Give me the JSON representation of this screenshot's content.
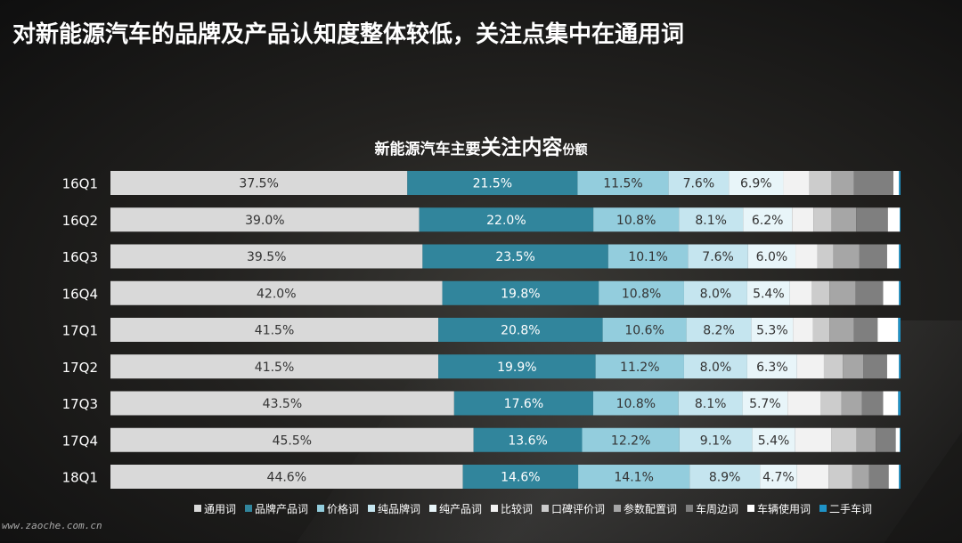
{
  "headline": "对新能源汽车的品牌及产品认知度整体较低，关注点集中在通用词",
  "chart_data": {
    "type": "bar",
    "orientation": "horizontal",
    "stacked": true,
    "percent_stacked": true,
    "title_parts": [
      "新能源汽车主要",
      "关注内容",
      "份额"
    ],
    "categories": [
      "16Q1",
      "16Q2",
      "16Q3",
      "16Q4",
      "17Q1",
      "17Q2",
      "17Q3",
      "17Q4",
      "18Q1"
    ],
    "series": [
      {
        "name": "通用词",
        "color": "#d9d9d9",
        "label_color": "#333333",
        "labeled": true,
        "values": [
          37.5,
          39.0,
          39.5,
          42.0,
          41.5,
          41.5,
          43.5,
          45.5,
          44.6
        ]
      },
      {
        "name": "品牌产品词",
        "color": "#31859c",
        "label_color": "#ffffff",
        "labeled": true,
        "values": [
          21.5,
          22.0,
          23.5,
          19.8,
          20.8,
          19.9,
          17.6,
          13.6,
          14.6
        ]
      },
      {
        "name": "价格词",
        "color": "#93cddd",
        "label_color": "#333333",
        "labeled": true,
        "values": [
          11.5,
          10.8,
          10.1,
          10.8,
          10.6,
          11.2,
          10.8,
          12.2,
          14.1
        ]
      },
      {
        "name": "纯品牌词",
        "color": "#c5e5ef",
        "label_color": "#333333",
        "labeled": true,
        "values": [
          7.6,
          8.1,
          7.6,
          8.0,
          8.2,
          8.0,
          8.1,
          9.1,
          8.9
        ]
      },
      {
        "name": "纯产品词",
        "color": "#e8f5f9",
        "label_color": "#333333",
        "labeled": true,
        "values": [
          6.9,
          6.2,
          6.0,
          5.4,
          5.3,
          6.3,
          5.7,
          5.4,
          4.7
        ]
      },
      {
        "name": "比较词",
        "color": "#f2f2f2",
        "label_color": "#333333",
        "labeled": false,
        "values": [
          3.3,
          2.7,
          2.8,
          2.8,
          2.5,
          3.4,
          4.2,
          4.5,
          4.0
        ]
      },
      {
        "name": "口碑评价词",
        "color": "#cccccc",
        "label_color": "#333333",
        "labeled": false,
        "values": [
          2.8,
          2.3,
          2.0,
          2.2,
          2.1,
          2.4,
          2.6,
          3.2,
          3.0
        ]
      },
      {
        "name": "参数配置词",
        "color": "#a6a6a6",
        "label_color": "#333333",
        "labeled": false,
        "values": [
          2.8,
          3.1,
          3.3,
          3.3,
          3.1,
          2.6,
          2.6,
          2.4,
          2.1
        ]
      },
      {
        "name": "车周边词",
        "color": "#7f7f7f",
        "label_color": "#333333",
        "labeled": false,
        "values": [
          5.0,
          4.0,
          3.5,
          3.5,
          3.0,
          3.0,
          2.7,
          2.5,
          2.5
        ]
      },
      {
        "name": "车辆使用词",
        "color": "#ffffff",
        "label_color": "#333333",
        "labeled": false,
        "values": [
          0.7,
          1.5,
          1.5,
          2.0,
          2.6,
          1.5,
          1.9,
          0.5,
          1.3
        ]
      },
      {
        "name": "二手车词",
        "color": "#1f93c7",
        "label_color": "#333333",
        "labeled": false,
        "values": [
          0.2,
          0.1,
          0.2,
          0.2,
          0.3,
          0.2,
          0.3,
          0.1,
          0.2
        ]
      }
    ],
    "value_suffix": "%",
    "xlim": [
      0,
      100
    ],
    "legend_position": "bottom-right",
    "grid": false
  },
  "watermark": "www.zaoche.com.cn"
}
